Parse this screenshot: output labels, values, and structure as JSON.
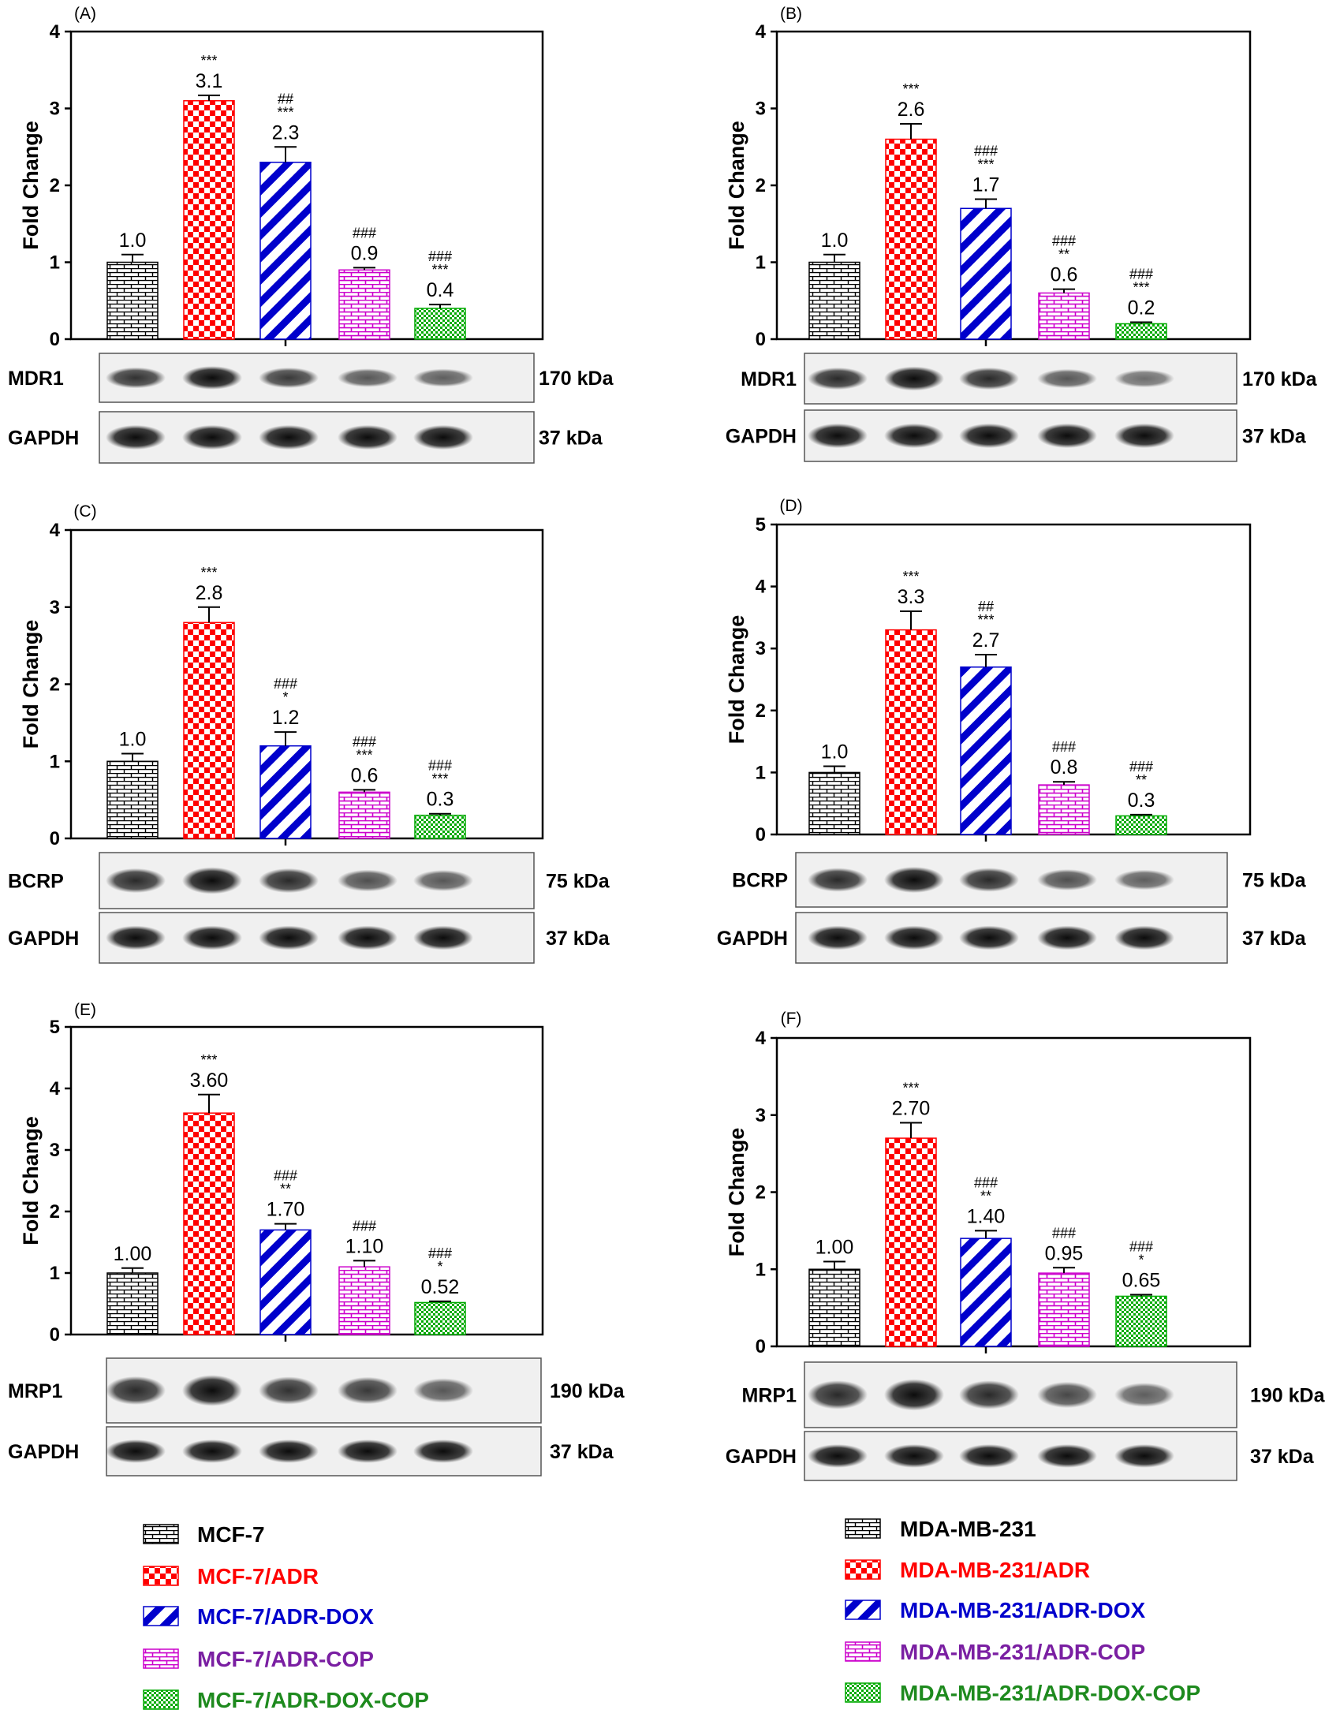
{
  "colors": {
    "MCF-7": "#000000",
    "ADR": "#ff0000",
    "ADR-DOX": "#0000cc",
    "ADR-COP": "#cc00cc",
    "ADR-DOX-COP": "#00aa00",
    "legend_text_ADR": "#ff0000",
    "legend_text_ADR-DOX": "#0000cc",
    "legend_text_ADR-COP": "#7a1fa2",
    "legend_text_ADR-DOX-COP": "#1e8a1e"
  },
  "chart_data": [
    {
      "type": "bar",
      "panel": "(A)",
      "ylabel": "Fold Change",
      "ylim": [
        0,
        4
      ],
      "yticks": [
        "0",
        "1",
        "2",
        "3",
        "4"
      ],
      "categories": [
        "MCF-7",
        "MCF-7/ADR",
        "MCF-7/ADR-DOX",
        "MCF-7/ADR-COP",
        "MCF-7/ADR-DOX-COP"
      ],
      "values": [
        1.0,
        3.1,
        2.3,
        0.9,
        0.4
      ],
      "errors": [
        0.1,
        0.07,
        0.2,
        0.03,
        0.05
      ],
      "value_labels": [
        "1.0",
        "3.1",
        "2.3",
        "0.9",
        "0.4"
      ],
      "sig_star": [
        "",
        "***",
        "***",
        "",
        "***"
      ],
      "sig_hash": [
        "",
        "",
        "##",
        "###",
        "###"
      ],
      "blots": [
        {
          "name": "MDR1",
          "kda": "170 kDa"
        },
        {
          "name": "GAPDH",
          "kda": "37 kDa"
        }
      ]
    },
    {
      "type": "bar",
      "panel": "(B)",
      "ylabel": "Fold Change",
      "ylim": [
        0,
        4
      ],
      "yticks": [
        "0",
        "1",
        "2",
        "3",
        "4"
      ],
      "categories": [
        "MDA-MB-231",
        "MDA-MB-231/ADR",
        "MDA-MB-231/ADR-DOX",
        "MDA-MB-231/ADR-COP",
        "MDA-MB-231/ADR-DOX-COP"
      ],
      "values": [
        1.0,
        2.6,
        1.7,
        0.6,
        0.2
      ],
      "errors": [
        0.1,
        0.2,
        0.12,
        0.05,
        0.02
      ],
      "value_labels": [
        "1.0",
        "2.6",
        "1.7",
        "0.6",
        "0.2"
      ],
      "sig_star": [
        "",
        "***",
        "***",
        "**",
        "***"
      ],
      "sig_hash": [
        "",
        "",
        "###",
        "###",
        "###"
      ],
      "blots": [
        {
          "name": "MDR1",
          "kda": "170 kDa"
        },
        {
          "name": "GAPDH",
          "kda": "37 kDa"
        }
      ]
    },
    {
      "type": "bar",
      "panel": "(C)",
      "ylabel": "Fold Change",
      "ylim": [
        0,
        4
      ],
      "yticks": [
        "0",
        "1",
        "2",
        "3",
        "4"
      ],
      "categories": [
        "MCF-7",
        "MCF-7/ADR",
        "MCF-7/ADR-DOX",
        "MCF-7/ADR-COP",
        "MCF-7/ADR-DOX-COP"
      ],
      "values": [
        1.0,
        2.8,
        1.2,
        0.6,
        0.3
      ],
      "errors": [
        0.1,
        0.2,
        0.18,
        0.03,
        0.02
      ],
      "value_labels": [
        "1.0",
        "2.8",
        "1.2",
        "0.6",
        "0.3"
      ],
      "sig_star": [
        "",
        "***",
        "*",
        "***",
        "***"
      ],
      "sig_hash": [
        "",
        "",
        "###",
        "###",
        "###"
      ],
      "blots": [
        {
          "name": "BCRP",
          "kda": "75 kDa"
        },
        {
          "name": "GAPDH",
          "kda": "37 kDa"
        }
      ]
    },
    {
      "type": "bar",
      "panel": "(D)",
      "ylabel": "Fold Change",
      "ylim": [
        0,
        5
      ],
      "yticks": [
        "0",
        "1",
        "2",
        "3",
        "4",
        "5"
      ],
      "categories": [
        "MDA-MB-231",
        "MDA-MB-231/ADR",
        "MDA-MB-231/ADR-DOX",
        "MDA-MB-231/ADR-COP",
        "MDA-MB-231/ADR-DOX-COP"
      ],
      "values": [
        1.0,
        3.3,
        2.7,
        0.8,
        0.3
      ],
      "errors": [
        0.1,
        0.3,
        0.2,
        0.05,
        0.02
      ],
      "value_labels": [
        "1.0",
        "3.3",
        "2.7",
        "0.8",
        "0.3"
      ],
      "sig_star": [
        "",
        "***",
        "***",
        "",
        "**"
      ],
      "sig_hash": [
        "",
        "",
        "##",
        "###",
        "###"
      ],
      "blots": [
        {
          "name": "BCRP",
          "kda": "75 kDa"
        },
        {
          "name": "GAPDH",
          "kda": "37 kDa"
        }
      ]
    },
    {
      "type": "bar",
      "panel": "(E)",
      "ylabel": "Fold Change",
      "ylim": [
        0,
        5
      ],
      "yticks": [
        "0",
        "1",
        "2",
        "3",
        "4",
        "5"
      ],
      "categories": [
        "MCF-7",
        "MCF-7/ADR",
        "MCF-7/ADR-DOX",
        "MCF-7/ADR-COP",
        "MCF-7/ADR-DOX-COP"
      ],
      "values": [
        1.0,
        3.6,
        1.7,
        1.1,
        0.52
      ],
      "errors": [
        0.08,
        0.3,
        0.1,
        0.1,
        0.02
      ],
      "value_labels": [
        "1.00",
        "3.60",
        "1.70",
        "1.10",
        "0.52"
      ],
      "sig_star": [
        "",
        "***",
        "**",
        "",
        "*"
      ],
      "sig_hash": [
        "",
        "",
        "###",
        "###",
        "###"
      ],
      "blots": [
        {
          "name": "MRP1",
          "kda": "190 kDa"
        },
        {
          "name": "GAPDH",
          "kda": "37 kDa"
        }
      ]
    },
    {
      "type": "bar",
      "panel": "(F)",
      "ylabel": "Fold Change",
      "ylim": [
        0,
        4
      ],
      "yticks": [
        "0",
        "1",
        "2",
        "3",
        "4"
      ],
      "categories": [
        "MDA-MB-231",
        "MDA-MB-231/ADR",
        "MDA-MB-231/ADR-DOX",
        "MDA-MB-231/ADR-COP",
        "MDA-MB-231/ADR-DOX-COP"
      ],
      "values": [
        1.0,
        2.7,
        1.4,
        0.95,
        0.65
      ],
      "errors": [
        0.1,
        0.2,
        0.1,
        0.07,
        0.02
      ],
      "value_labels": [
        "1.00",
        "2.70",
        "1.40",
        "0.95",
        "0.65"
      ],
      "sig_star": [
        "",
        "***",
        "**",
        "",
        "*"
      ],
      "sig_hash": [
        "",
        "",
        "###",
        "###",
        "###"
      ],
      "blots": [
        {
          "name": "MRP1",
          "kda": "190 kDa"
        },
        {
          "name": "GAPDH",
          "kda": "37 kDa"
        }
      ]
    }
  ],
  "legends": [
    {
      "items": [
        "MCF-7",
        "MCF-7/ADR",
        "MCF-7/ADR-DOX",
        "MCF-7/ADR-COP",
        "MCF-7/ADR-DOX-COP"
      ]
    },
    {
      "items": [
        "MDA-MB-231",
        "MDA-MB-231/ADR",
        "MDA-MB-231/ADR-DOX",
        "MDA-MB-231/ADR-COP",
        "MDA-MB-231/ADR-DOX-COP"
      ]
    }
  ]
}
